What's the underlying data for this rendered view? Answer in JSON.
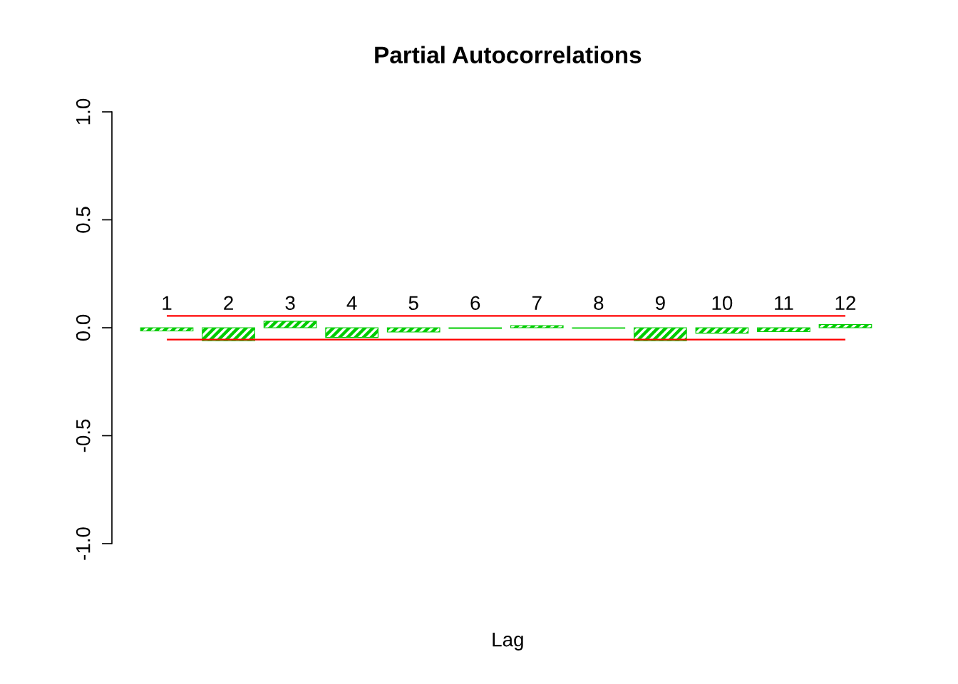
{
  "chart_data": {
    "type": "bar",
    "title": "Partial Autocorrelations",
    "xlabel": "Lag",
    "categories": [
      "1",
      "2",
      "3",
      "4",
      "5",
      "6",
      "7",
      "8",
      "9",
      "10",
      "11",
      "12"
    ],
    "values": [
      -0.015,
      -0.06,
      0.03,
      -0.045,
      -0.02,
      -0.003,
      0.01,
      -0.002,
      -0.06,
      -0.025,
      -0.018,
      0.015
    ],
    "color": "#00cc00",
    "ylim": [
      -1.0,
      1.0
    ],
    "yticks": [
      {
        "value": -1.0,
        "label": "-1.0"
      },
      {
        "value": -0.5,
        "label": "-0.5"
      },
      {
        "value": 0.0,
        "label": "0.0"
      },
      {
        "value": 0.5,
        "label": "0.5"
      },
      {
        "value": 1.0,
        "label": "1.0"
      }
    ],
    "ref_lines": [
      {
        "axis": "y",
        "value": 0.055,
        "color": "#ff0000"
      },
      {
        "axis": "y",
        "value": -0.055,
        "color": "#ff0000"
      }
    ],
    "grid": false
  }
}
